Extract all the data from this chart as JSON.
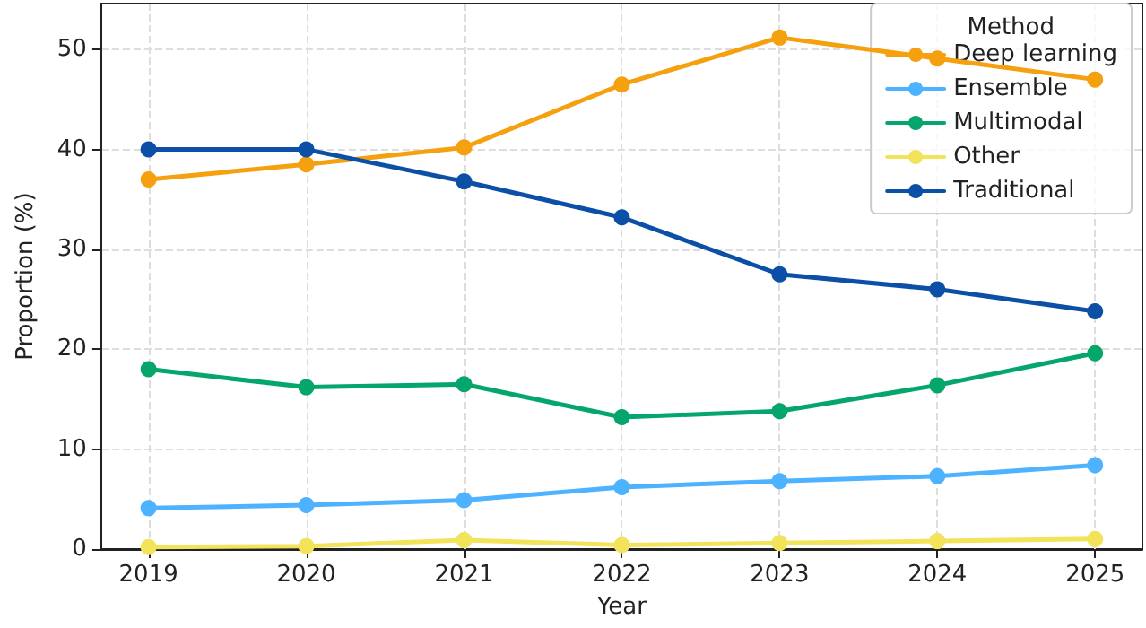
{
  "chart_data": {
    "type": "line",
    "xlabel": "Year",
    "ylabel": "Proportion (%)",
    "legend_title": "Method",
    "x": [
      2019,
      2020,
      2021,
      2022,
      2023,
      2024,
      2025
    ],
    "series": [
      {
        "name": "Deep learning",
        "color": "#f5a00f",
        "values": [
          37.0,
          38.5,
          40.2,
          46.5,
          51.2,
          49.1,
          47.0
        ]
      },
      {
        "name": "Ensemble",
        "color": "#4db2ff",
        "values": [
          4.1,
          4.4,
          4.9,
          6.2,
          6.8,
          7.3,
          8.4
        ]
      },
      {
        "name": "Multimodal",
        "color": "#05a66b",
        "values": [
          18.0,
          16.2,
          16.5,
          13.2,
          13.8,
          16.4,
          19.6
        ]
      },
      {
        "name": "Other",
        "color": "#f2e35a",
        "values": [
          0.2,
          0.3,
          0.9,
          0.4,
          0.6,
          0.8,
          1.0
        ]
      },
      {
        "name": "Traditional",
        "color": "#0c4fa6",
        "values": [
          40.0,
          40.0,
          36.8,
          33.2,
          27.5,
          26.0,
          23.8
        ]
      }
    ],
    "xlim": [
      2018.7,
      2025.3
    ],
    "xticks": [
      2019,
      2020,
      2021,
      2022,
      2023,
      2024,
      2025
    ],
    "ylim": [
      0,
      54.6
    ],
    "yticks": [
      0,
      10,
      20,
      30,
      40,
      50
    ],
    "grid": true,
    "legend": "top right",
    "marker": "circle",
    "line_style": "solid"
  }
}
